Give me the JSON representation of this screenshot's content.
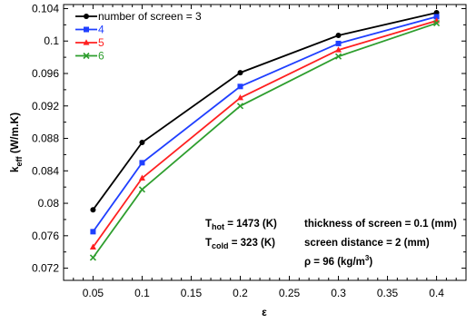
{
  "chart_data": {
    "type": "line",
    "title": "",
    "xlabel": "ε",
    "ylabel_main": "k",
    "ylabel_sub": "eff",
    "ylabel_unit": " (W/m.K)",
    "x": [
      0.05,
      0.1,
      0.2,
      0.3,
      0.4
    ],
    "xticks": [
      "0.05",
      "0.1",
      "0.15",
      "0.2",
      "0.25",
      "0.3",
      "0.35",
      "0.4"
    ],
    "xtick_values": [
      0.05,
      0.1,
      0.15,
      0.2,
      0.25,
      0.3,
      0.35,
      0.4
    ],
    "yticks": [
      "0.072",
      "0.076",
      "0.08",
      "0.084",
      "0.088",
      "0.092",
      "0.096",
      "0.1",
      "0.104"
    ],
    "ytick_values": [
      0.072,
      0.076,
      0.08,
      0.084,
      0.088,
      0.092,
      0.096,
      0.1,
      0.104
    ],
    "xlim": [
      0.02,
      0.43
    ],
    "ylim": [
      0.0705,
      0.1045
    ],
    "grid": false,
    "legend_position": "top-left",
    "series": [
      {
        "name": "number of screen = 3",
        "color": "#000000",
        "marker": "circle",
        "values": [
          0.0792,
          0.0875,
          0.0961,
          0.1007,
          0.1035
        ]
      },
      {
        "name": "4",
        "color": "#1f3fff",
        "marker": "square",
        "values": [
          0.0765,
          0.085,
          0.0944,
          0.0997,
          0.103
        ]
      },
      {
        "name": "5",
        "color": "#ff2020",
        "marker": "triangle",
        "values": [
          0.0746,
          0.0831,
          0.093,
          0.0989,
          0.1025
        ]
      },
      {
        "name": "6",
        "color": "#2e9e2e",
        "marker": "x",
        "values": [
          0.0733,
          0.0817,
          0.092,
          0.0981,
          0.1022
        ]
      }
    ],
    "annotations": {
      "t_hot_main": "T",
      "t_hot_sub": "hot",
      "t_hot_value": " = 1473 (K)",
      "t_cold_main": "T",
      "t_cold_sub": "cold",
      "t_cold_value": " = 323 (K)",
      "thickness": "thickness of screen = 0.1 (mm)",
      "distance": "screen distance = 2 (mm)",
      "rho_main": "ρ = 96 (kg/m",
      "rho_sup": "3",
      "rho_end": ")"
    }
  }
}
